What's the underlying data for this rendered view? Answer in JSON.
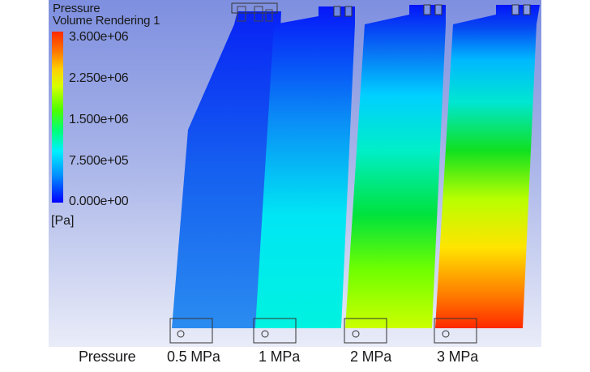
{
  "legend": {
    "variable": "Pressure",
    "render_name": "Volume Rendering 1",
    "ticks": [
      "3.600e+06",
      "2.250e+06",
      "1.500e+06",
      "7.500e+05",
      "0.000e+00"
    ],
    "unit": "[Pa]",
    "min_value": 0,
    "max_value": 3600000
  },
  "bottom_labels": {
    "row_label": "Pressure",
    "cases": [
      "0.5 MPa",
      "1 MPa",
      "2 MPa",
      "3 MPa"
    ]
  },
  "cases": [
    {
      "label": "0.5 MPa",
      "inlet_pressure_mpa": 0.5,
      "bottom_color": "#1a8cff",
      "top_color": "#0020ff"
    },
    {
      "label": "1 MPa",
      "inlet_pressure_mpa": 1,
      "bottom_color": "#00f0e0",
      "top_color": "#0010ff"
    },
    {
      "label": "2 MPa",
      "inlet_pressure_mpa": 2,
      "bottom_color": "#c8ff00",
      "top_color": "#0010ff"
    },
    {
      "label": "3 MPa",
      "inlet_pressure_mpa": 3,
      "bottom_color": "#ff2a00",
      "top_color": "#0010ff"
    }
  ]
}
